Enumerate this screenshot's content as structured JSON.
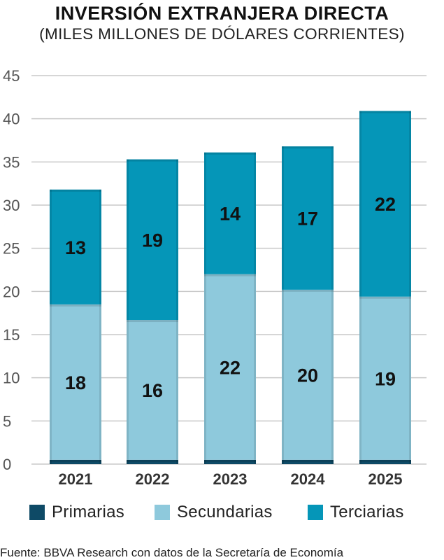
{
  "title": "INVERSIÓN EXTRANJERA DIRECTA",
  "subtitle": "(MILES MILLONES DE DÓLARES CORRIENTES)",
  "source": "Fuente: BBVA Research con datos de la Secretaría de Economía",
  "colors": {
    "primarias": "#0e4a66",
    "secundarias": "#8ec9dc",
    "terciarias": "#0596b8",
    "grid": "#c8c8c8"
  },
  "chart_data": {
    "type": "bar",
    "stacked": true,
    "title": "INVERSIÓN EXTRANJERA DIRECTA",
    "subtitle": "(MILES MILLONES DE DÓLARES CORRIENTES)",
    "categories": [
      "2021",
      "2022",
      "2023",
      "2024",
      "2025"
    ],
    "ylim": [
      0,
      45
    ],
    "yticks": [
      0,
      5,
      10,
      15,
      20,
      25,
      30,
      35,
      40,
      45
    ],
    "grid": true,
    "legend_position": "bottom",
    "series": [
      {
        "name": "Primarias",
        "values": [
          0.5,
          0.5,
          0.5,
          0.5,
          0.5
        ],
        "labels": [
          "",
          "",
          "",
          "",
          ""
        ]
      },
      {
        "name": "Secundarias",
        "values": [
          18,
          16.2,
          21.5,
          19.7,
          18.9
        ],
        "labels": [
          "18",
          "16",
          "22",
          "20",
          "19"
        ]
      },
      {
        "name": "Terciarias",
        "values": [
          13.3,
          18.6,
          14.1,
          16.6,
          21.5
        ],
        "labels": [
          "13",
          "19",
          "14",
          "17",
          "22"
        ]
      }
    ]
  }
}
